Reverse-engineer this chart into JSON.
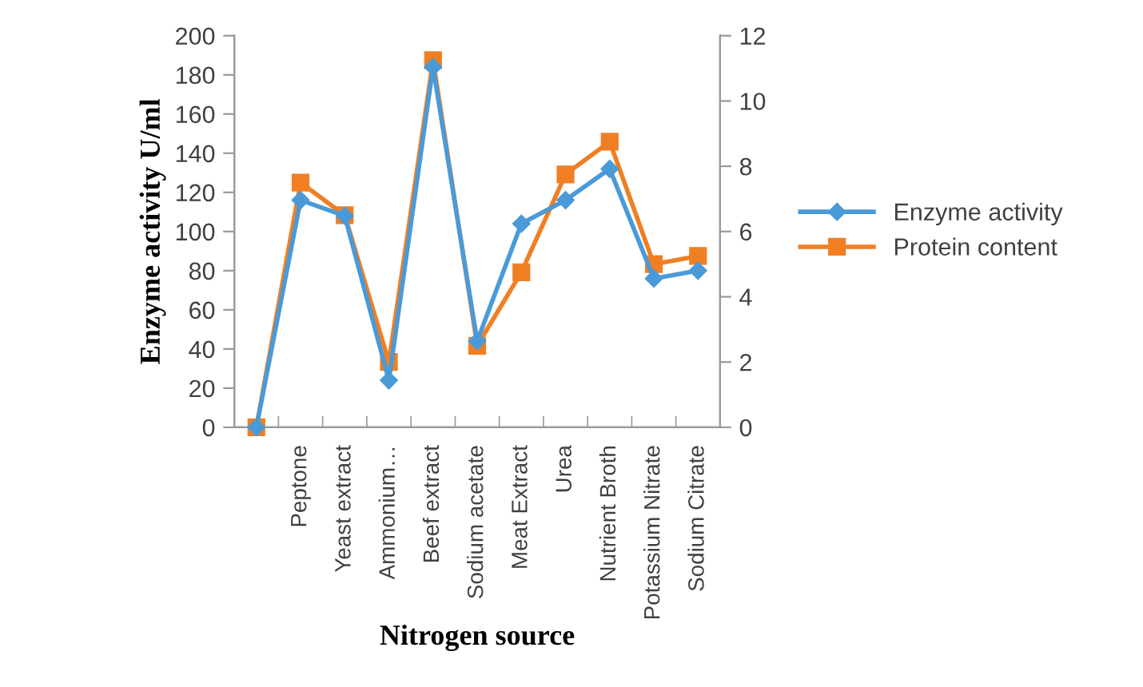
{
  "chart_data": {
    "type": "line",
    "xlabel": "Nitrogen source",
    "ylabel": "Enzyme activity U/ml",
    "categories": [
      null,
      "Peptone",
      "Yeast extract",
      "Ammonium…",
      "Beef extract",
      "Sodium acetate",
      "Meat Extract",
      "Urea",
      "Nutrient Broth",
      "Potassium Nitrate",
      "Sodium Citrate"
    ],
    "series": [
      {
        "name": "Enzyme activity",
        "color": "#4a9ad8",
        "marker": "diamond",
        "values": [
          0,
          116,
          108,
          24,
          184,
          44,
          104,
          116,
          132,
          76,
          80
        ]
      },
      {
        "name": "Protein content",
        "color": "#f07f23",
        "marker": "square",
        "axis": "y2",
        "values": [
          0,
          7.5,
          6.5,
          2.0,
          11.25,
          2.5,
          4.75,
          7.75,
          8.75,
          5.0,
          5.25
        ]
      }
    ],
    "ylim": [
      0,
      200
    ],
    "yticks": [
      0,
      20,
      40,
      60,
      80,
      100,
      120,
      140,
      160,
      180,
      200
    ],
    "y2lim": [
      0,
      12
    ],
    "y2ticks": [
      0,
      2,
      4,
      6,
      8,
      10,
      12
    ],
    "grid": false,
    "legend": "right",
    "line_style": "solid"
  }
}
